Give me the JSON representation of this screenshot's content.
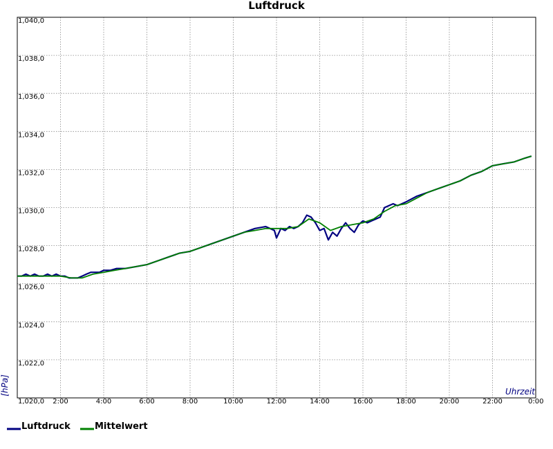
{
  "chart_data": {
    "type": "line",
    "title": "Luftdruck",
    "ylabel": "[hPa]",
    "xlabel": "Uhrzeit",
    "xlim": [
      0,
      24
    ],
    "ylim": [
      1020.0,
      1040.0
    ],
    "y_ticks": [
      {
        "value": 1020.0,
        "label": "1,020,0"
      },
      {
        "value": 1022.0,
        "label": "1,022,0"
      },
      {
        "value": 1024.0,
        "label": "1,024,0"
      },
      {
        "value": 1026.0,
        "label": "1,026,0"
      },
      {
        "value": 1028.0,
        "label": "1,028,0"
      },
      {
        "value": 1030.0,
        "label": "1,030,0"
      },
      {
        "value": 1032.0,
        "label": "1,032,0"
      },
      {
        "value": 1034.0,
        "label": "1,034,0"
      },
      {
        "value": 1036.0,
        "label": "1,036,0"
      },
      {
        "value": 1038.0,
        "label": "1,038,0"
      },
      {
        "value": 1040.0,
        "label": "1,040,0"
      }
    ],
    "x_ticks": [
      {
        "value": 2,
        "label": "2:00"
      },
      {
        "value": 4,
        "label": "4:00"
      },
      {
        "value": 6,
        "label": "6:00"
      },
      {
        "value": 8,
        "label": "8:00"
      },
      {
        "value": 10,
        "label": "10:00"
      },
      {
        "value": 12,
        "label": "12:00"
      },
      {
        "value": 14,
        "label": "14:00"
      },
      {
        "value": 16,
        "label": "16:00"
      },
      {
        "value": 18,
        "label": "18:00"
      },
      {
        "value": 20,
        "label": "20:00"
      },
      {
        "value": 22,
        "label": "22:00"
      },
      {
        "value": 24,
        "label": "0:00"
      }
    ],
    "x_grid": [
      0,
      2,
      4,
      6,
      8,
      10,
      12,
      14,
      16,
      18,
      20,
      22,
      24
    ],
    "grid": true,
    "legend_position": "bottom-left",
    "series": [
      {
        "name": "Luftdruck",
        "color": "#000080",
        "x": [
          0.0,
          0.2,
          0.4,
          0.6,
          0.8,
          1.0,
          1.2,
          1.4,
          1.6,
          1.8,
          2.0,
          2.2,
          2.4,
          2.6,
          2.8,
          3.0,
          3.2,
          3.4,
          3.6,
          3.8,
          4.0,
          4.3,
          4.6,
          5.0,
          5.5,
          6.0,
          6.5,
          7.0,
          7.5,
          8.0,
          8.5,
          9.0,
          9.5,
          10.0,
          10.5,
          11.0,
          11.5,
          11.9,
          12.0,
          12.2,
          12.4,
          12.6,
          12.8,
          13.0,
          13.2,
          13.4,
          13.6,
          13.8,
          14.0,
          14.2,
          14.3,
          14.4,
          14.6,
          14.8,
          15.0,
          15.2,
          15.4,
          15.6,
          15.8,
          16.0,
          16.2,
          16.4,
          16.6,
          16.8,
          17.0,
          17.2,
          17.4,
          17.6,
          17.8,
          18.0,
          18.5,
          19.0,
          19.5,
          20.0,
          20.5,
          21.0,
          21.5,
          22.0,
          22.5,
          23.0,
          23.5,
          23.8
        ],
        "values": [
          1026.4,
          1026.4,
          1026.5,
          1026.4,
          1026.5,
          1026.4,
          1026.4,
          1026.5,
          1026.4,
          1026.5,
          1026.4,
          1026.4,
          1026.3,
          1026.3,
          1026.3,
          1026.4,
          1026.5,
          1026.6,
          1026.6,
          1026.6,
          1026.7,
          1026.7,
          1026.8,
          1026.8,
          1026.9,
          1027.0,
          1027.2,
          1027.4,
          1027.6,
          1027.7,
          1027.9,
          1028.1,
          1028.3,
          1028.5,
          1028.7,
          1028.9,
          1029.0,
          1028.8,
          1028.4,
          1028.9,
          1028.8,
          1029.0,
          1028.9,
          1029.0,
          1029.2,
          1029.6,
          1029.5,
          1029.2,
          1028.8,
          1028.9,
          1028.6,
          1028.3,
          1028.7,
          1028.5,
          1028.9,
          1029.2,
          1028.9,
          1028.7,
          1029.1,
          1029.3,
          1029.2,
          1029.3,
          1029.4,
          1029.5,
          1030.0,
          1030.1,
          1030.2,
          1030.1,
          1030.2,
          1030.3,
          1030.6,
          1030.8,
          1031.0,
          1031.2,
          1031.4,
          1031.7,
          1031.9,
          1032.2,
          1032.3,
          1032.4,
          1032.6,
          1032.7
        ]
      },
      {
        "name": "Mittelwert",
        "color": "#008000",
        "x": [
          0.0,
          0.5,
          1.0,
          1.5,
          2.0,
          2.5,
          3.0,
          3.5,
          4.0,
          4.5,
          5.0,
          5.5,
          6.0,
          6.5,
          7.0,
          7.5,
          8.0,
          8.5,
          9.0,
          9.5,
          10.0,
          10.5,
          11.0,
          11.5,
          12.0,
          12.5,
          13.0,
          13.5,
          14.0,
          14.5,
          15.0,
          15.5,
          16.0,
          16.5,
          17.0,
          17.5,
          18.0,
          18.5,
          19.0,
          19.5,
          20.0,
          20.5,
          21.0,
          21.5,
          22.0,
          22.5,
          23.0,
          23.5,
          23.8
        ],
        "values": [
          1026.4,
          1026.4,
          1026.4,
          1026.4,
          1026.4,
          1026.3,
          1026.3,
          1026.5,
          1026.6,
          1026.7,
          1026.8,
          1026.9,
          1027.0,
          1027.2,
          1027.4,
          1027.6,
          1027.7,
          1027.9,
          1028.1,
          1028.3,
          1028.5,
          1028.7,
          1028.8,
          1028.9,
          1028.9,
          1028.9,
          1029.0,
          1029.4,
          1029.2,
          1028.8,
          1029.0,
          1029.1,
          1029.2,
          1029.4,
          1029.8,
          1030.1,
          1030.2,
          1030.5,
          1030.8,
          1031.0,
          1031.2,
          1031.4,
          1031.7,
          1031.9,
          1032.2,
          1032.3,
          1032.4,
          1032.6,
          1032.7
        ]
      }
    ]
  }
}
